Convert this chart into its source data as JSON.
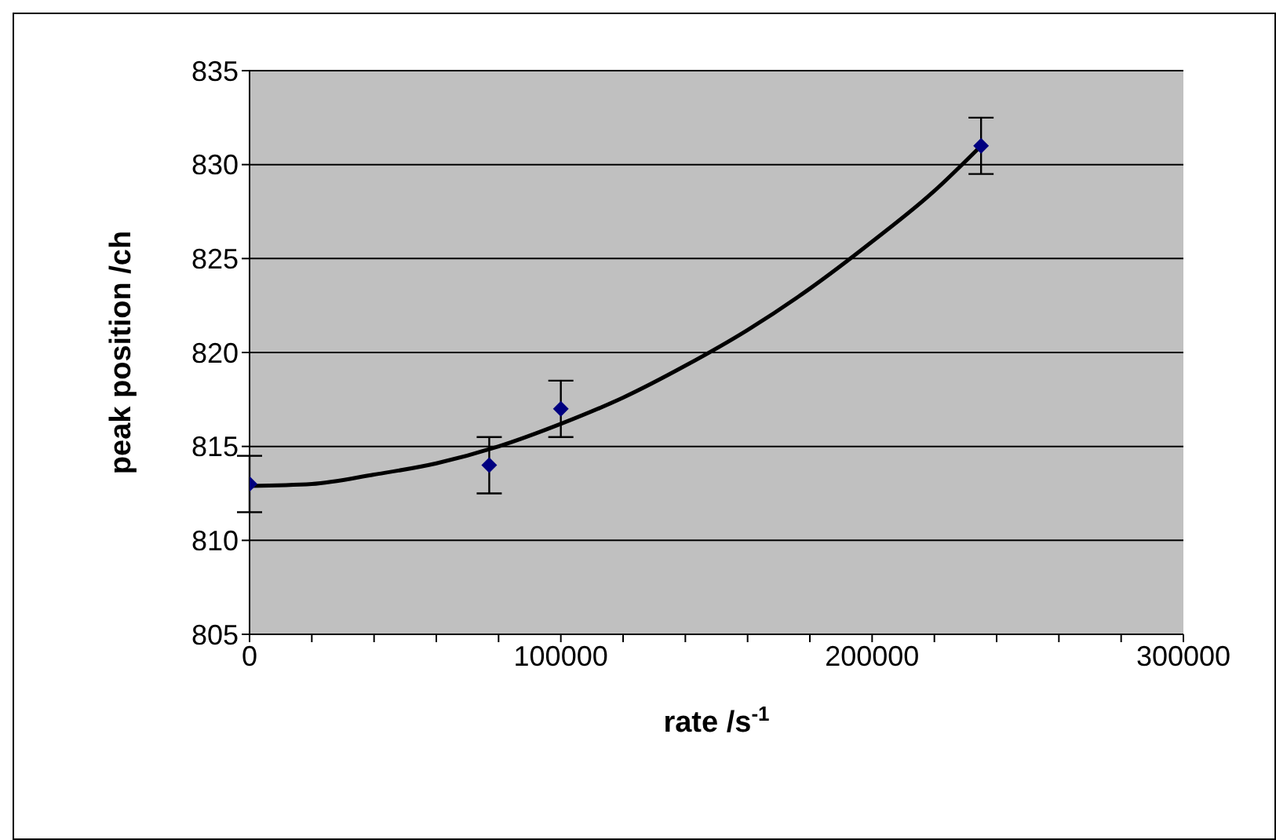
{
  "chart_data": {
    "type": "scatter",
    "xlabel": "rate /s$^{-1}$",
    "ylabel": "peak position /ch",
    "xlim": [
      0,
      300000
    ],
    "xticks": [
      0,
      {
        "value": 20000,
        "label": null
      },
      {
        "value": 40000,
        "label": null
      },
      {
        "value": 60000,
        "label": null
      },
      {
        "value": 80000,
        "label": null
      },
      100000,
      {
        "value": 120000,
        "label": null
      },
      {
        "value": 140000,
        "label": null
      },
      {
        "value": 160000,
        "label": null
      },
      {
        "value": 180000,
        "label": null
      },
      200000,
      {
        "value": 220000,
        "label": null
      },
      {
        "value": 240000,
        "label": null
      },
      {
        "value": 260000,
        "label": null
      },
      {
        "value": 280000,
        "label": null
      },
      300000
    ],
    "ylim": [
      805,
      835
    ],
    "yticks": [
      805,
      810,
      815,
      820,
      825,
      830,
      835
    ],
    "grid": "y",
    "legend": false,
    "series": [
      {
        "color": "#000080",
        "marker": "diamond",
        "x": [
          0,
          77000,
          100000,
          235000
        ],
        "values": [
          813,
          814,
          817,
          831
        ],
        "errors": [
          1.5,
          1.5,
          1.5,
          1.5
        ]
      },
      {
        "type": "line",
        "color": "#000000",
        "marker": "none",
        "line_style": "solid",
        "x": [
          0,
          20000,
          40000,
          60000,
          80000,
          100000,
          120000,
          140000,
          160000,
          180000,
          200000,
          220000,
          235000
        ],
        "values": [
          812.9,
          813.0,
          813.5,
          814.1,
          815.0,
          816.2,
          817.6,
          819.3,
          821.2,
          823.4,
          825.9,
          828.6,
          831.0
        ]
      }
    ]
  }
}
